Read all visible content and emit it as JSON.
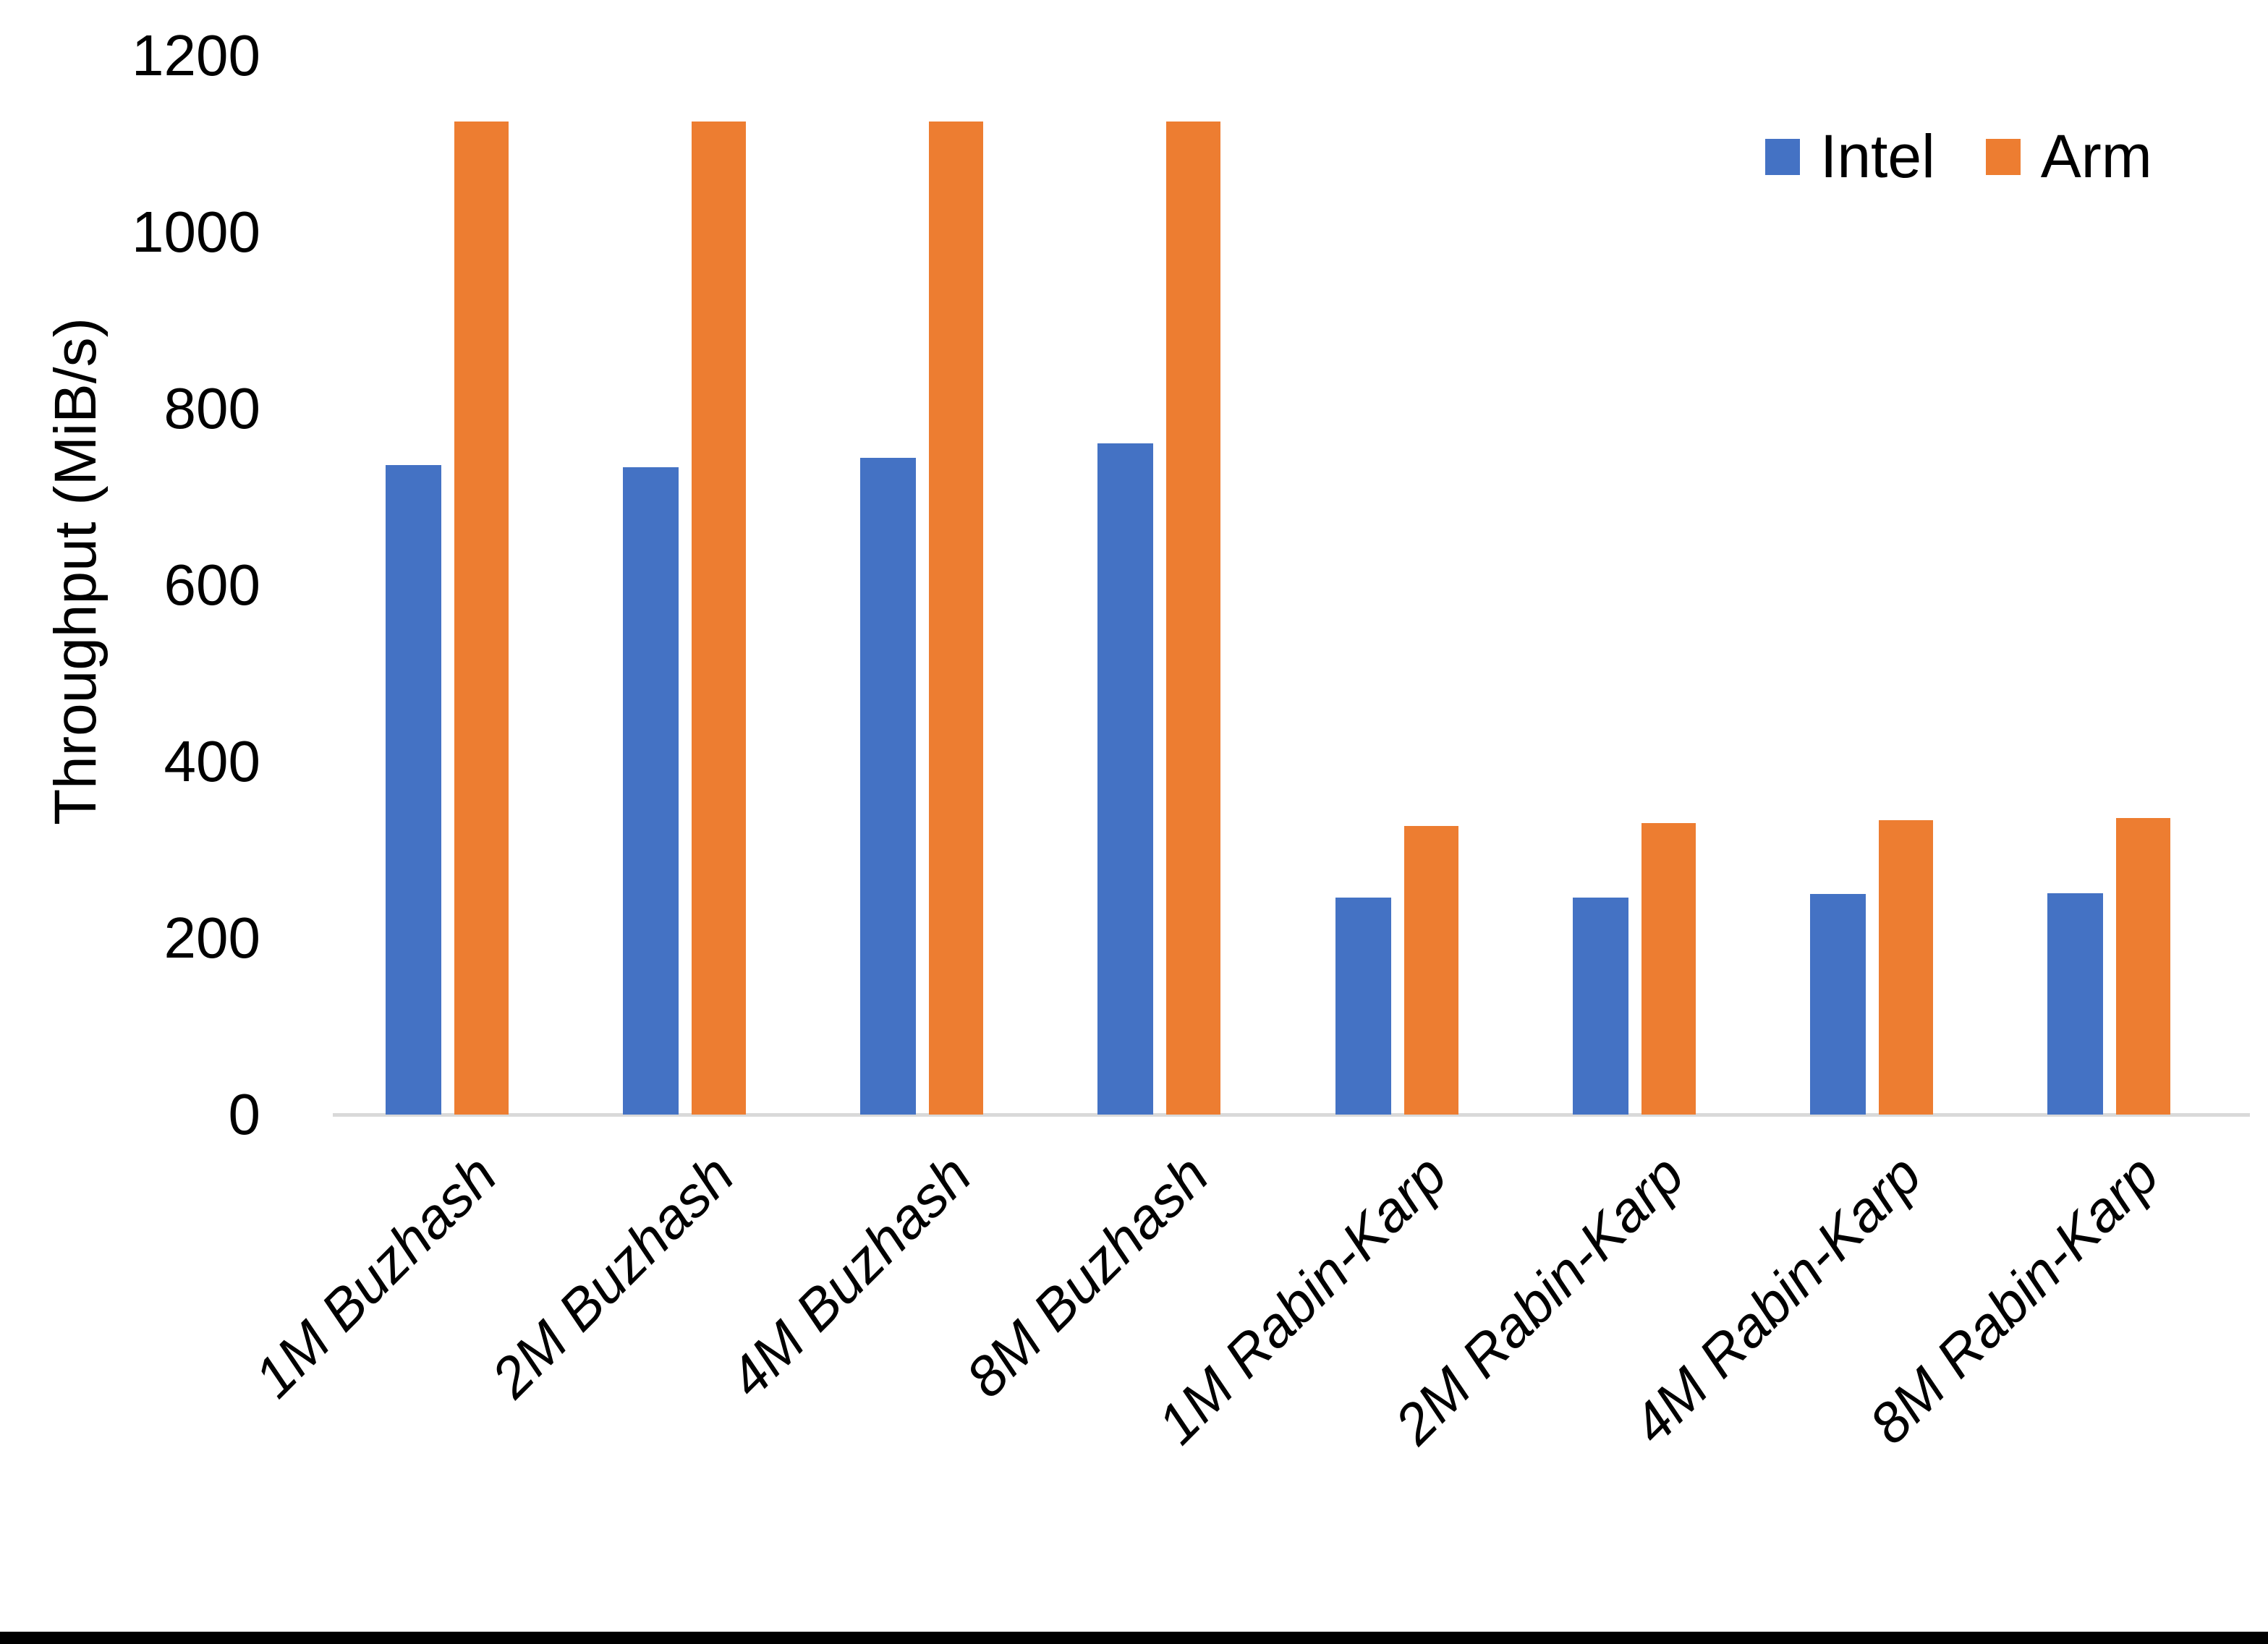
{
  "chart_data": {
    "type": "bar",
    "title": "",
    "xlabel": "",
    "ylabel": "Throughput (MiB/s)",
    "categories": [
      "1M Buzhash",
      "2M Buzhash",
      "4M Buzhash",
      "8M Buzhash",
      "1M Rabin-Karp",
      "2M Rabin-Karp",
      "4M Rabin-Karp",
      "8M Rabin-Karp"
    ],
    "series": [
      {
        "name": "Intel",
        "color": "#4472C4",
        "values": [
          736,
          734,
          744,
          761,
          246,
          246,
          250,
          251
        ]
      },
      {
        "name": "Arm",
        "color": "#ED7D31",
        "values": [
          1125,
          1125,
          1125,
          1125,
          327,
          330,
          334,
          336
        ]
      }
    ],
    "ylim": [
      0,
      1200
    ],
    "yticks": [
      0,
      200,
      400,
      600,
      800,
      1000,
      1200
    ],
    "grid": false,
    "legend_position": "top-right",
    "axis_line_color": "#D9D9D9"
  }
}
